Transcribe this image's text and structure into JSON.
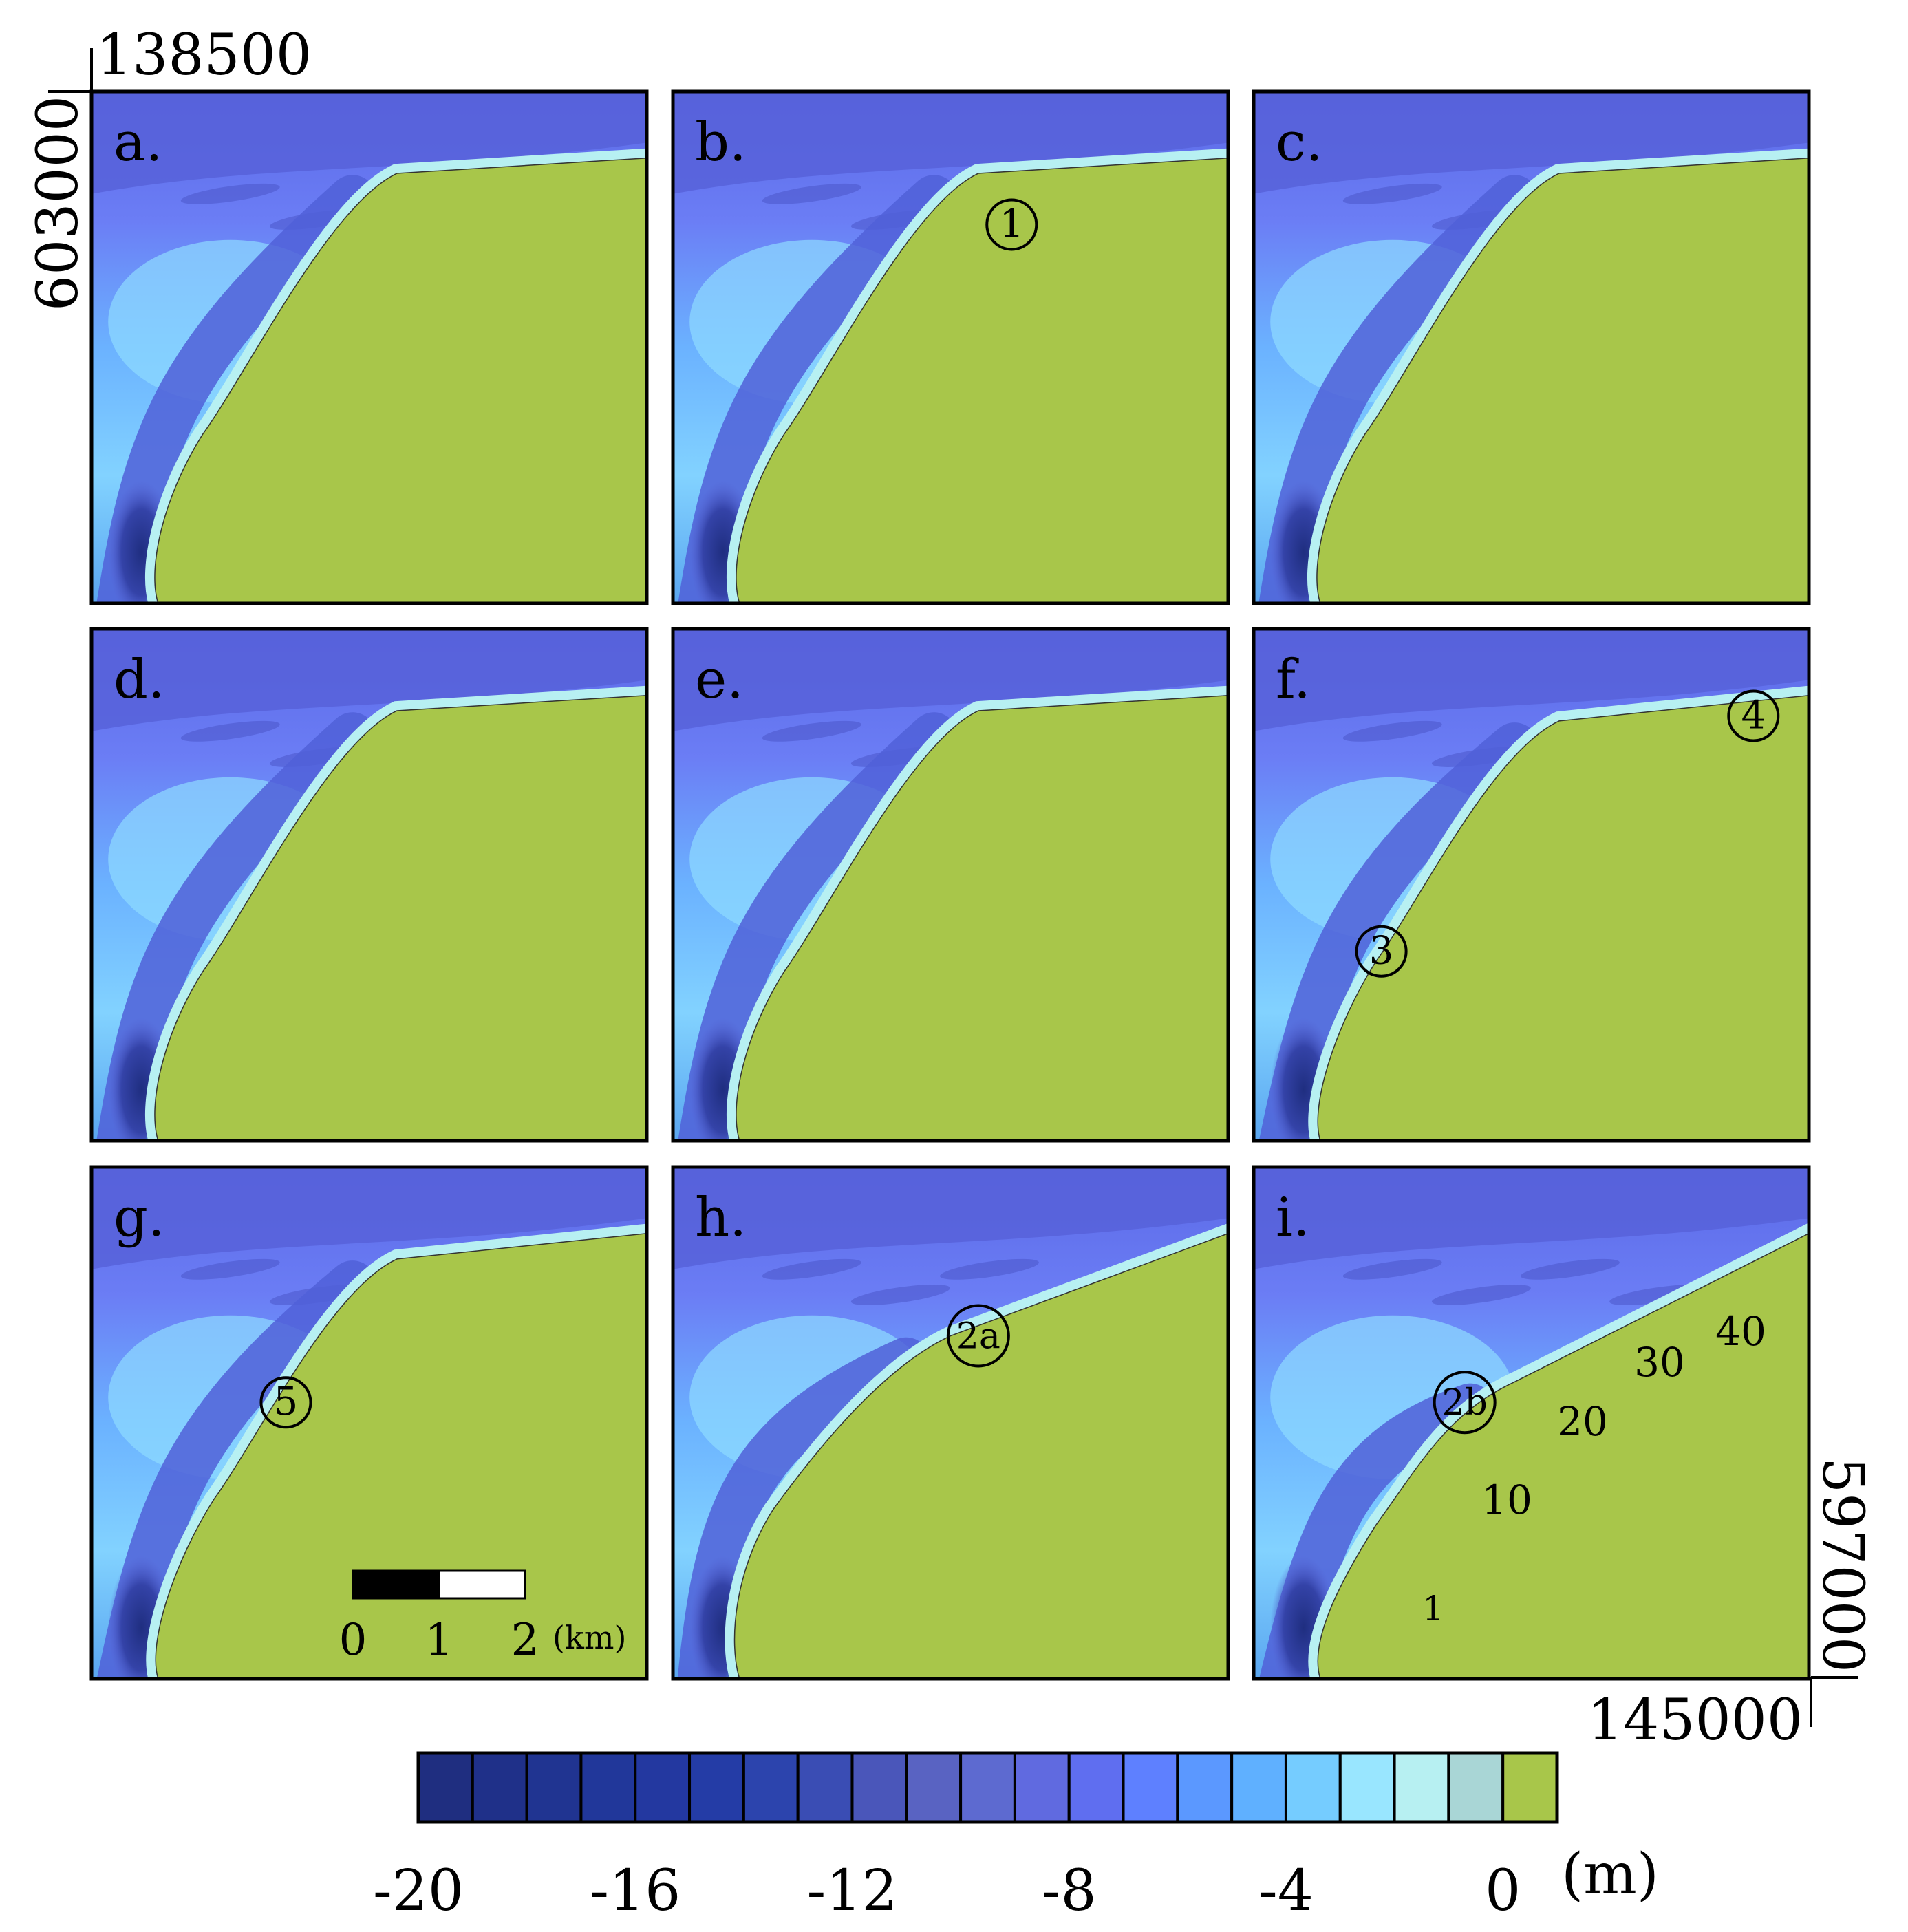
{
  "coords": {
    "top_x": "138500",
    "left_y": "603000",
    "bottom_x": "145000",
    "right_y": "597000"
  },
  "panels": [
    {
      "label": "a.",
      "markers": [],
      "coast": [
        [
          0.55,
          0.16
        ],
        [
          0.2,
          0.67
        ],
        [
          0.0,
          0.98
        ]
      ]
    },
    {
      "label": "b.",
      "markers": [
        {
          "text": "1",
          "x": 0.61,
          "y": 0.26
        }
      ],
      "coast": [
        [
          0.55,
          0.16
        ],
        [
          0.2,
          0.67
        ],
        [
          0.0,
          0.98
        ]
      ]
    },
    {
      "label": "c.",
      "markers": [],
      "coast": [
        [
          0.55,
          0.16
        ],
        [
          0.2,
          0.67
        ],
        [
          0.0,
          0.98
        ]
      ]
    },
    {
      "label": "d.",
      "markers": [],
      "coast": [
        [
          0.55,
          0.16
        ],
        [
          0.2,
          0.67
        ],
        [
          0.0,
          0.98
        ]
      ]
    },
    {
      "label": "e.",
      "markers": [],
      "coast": [
        [
          0.55,
          0.16
        ],
        [
          0.2,
          0.67
        ],
        [
          0.0,
          0.98
        ]
      ]
    },
    {
      "label": "f.",
      "markers": [
        {
          "text": "4",
          "x": 0.9,
          "y": 0.17
        },
        {
          "text": "3",
          "x": 0.23,
          "y": 0.63
        }
      ],
      "coast": [
        [
          0.55,
          0.18
        ],
        [
          0.22,
          0.65
        ],
        [
          0.0,
          0.98
        ]
      ]
    },
    {
      "label": "g.",
      "markers": [
        {
          "text": "5",
          "x": 0.35,
          "y": 0.46
        }
      ],
      "coast": [
        [
          0.55,
          0.18
        ],
        [
          0.22,
          0.65
        ],
        [
          0.0,
          0.98
        ]
      ]
    },
    {
      "label": "h.",
      "markers": [
        {
          "text": "2a",
          "x": 0.55,
          "y": 0.33
        }
      ],
      "coast": [
        [
          0.5,
          0.33
        ],
        [
          0.18,
          0.67
        ],
        [
          0.0,
          0.98
        ]
      ]
    },
    {
      "label": "i.",
      "markers": [
        {
          "text": "2b",
          "x": 0.38,
          "y": 0.46
        }
      ],
      "coast": [
        [
          0.47,
          0.42
        ],
        [
          0.22,
          0.7
        ],
        [
          0.0,
          0.98
        ]
      ]
    }
  ],
  "shoreline_labels": [
    "1",
    "10",
    "20",
    "30",
    "40"
  ],
  "scalebar": {
    "ticks": [
      "0",
      "1",
      "2"
    ],
    "unit": "(km)"
  },
  "colorbar": {
    "ticks": [
      "-20",
      "-16",
      "-12",
      "-8",
      "-4",
      "0"
    ],
    "unit": "(m)",
    "colors": [
      "#1f2e80",
      "#1f3089",
      "#203491",
      "#21379a",
      "#2338a0",
      "#243ca6",
      "#2c44ad",
      "#3a4db4",
      "#4a56ba",
      "#5963c2",
      "#5d6ad0",
      "#606ae0",
      "#5f6ef0",
      "#5e80ff",
      "#5b98ff",
      "#5fb0ff",
      "#75ccff",
      "#99e6ff",
      "#b7f0f2",
      "#a9d6d6",
      "#a8c64a"
    ]
  }
}
